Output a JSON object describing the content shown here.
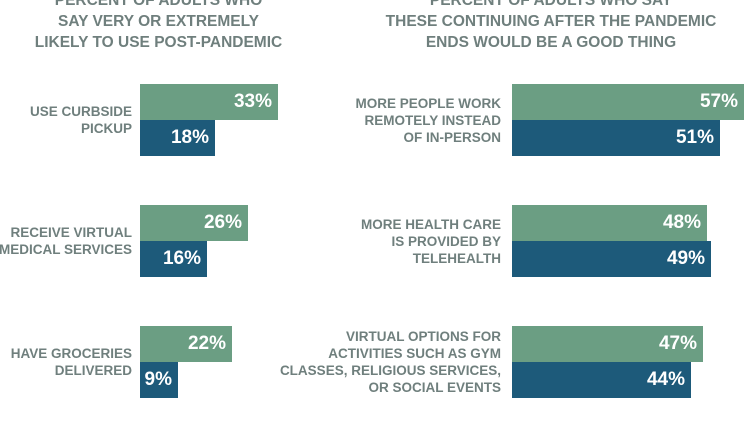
{
  "colors": {
    "series_1": "#6b9e83",
    "series_2": "#1d5a7a",
    "label_text": "#6f7f7d",
    "value_text": "#ffffff"
  },
  "chart_data": [
    {
      "type": "bar",
      "orientation": "horizontal",
      "title_lines": [
        "PERCENT OF ADULTS WHO",
        "SAY VERY OR EXTREMELY",
        "LIKELY TO USE POST-PANDEMIC"
      ],
      "categories": [
        {
          "lines": [
            "USE CURBSIDE",
            "PICKUP"
          ]
        },
        {
          "lines": [
            "RECEIVE VIRTUAL",
            "MEDICAL SERVICES"
          ]
        },
        {
          "lines": [
            "HAVE GROCERIES",
            "DELIVERED"
          ]
        }
      ],
      "series": [
        {
          "values": [
            33,
            26,
            22
          ],
          "labels": [
            "33%",
            "26%",
            "22%"
          ]
        },
        {
          "values": [
            18,
            16,
            9
          ],
          "labels": [
            "18%",
            "16%",
            "9%"
          ]
        }
      ],
      "xlim": [
        0,
        100
      ],
      "grid": false,
      "legend": "none"
    },
    {
      "type": "bar",
      "orientation": "horizontal",
      "title_lines": [
        "PERCENT OF ADULTS WHO SAY",
        "THESE CONTINUING AFTER THE PANDEMIC",
        "ENDS WOULD BE A GOOD THING"
      ],
      "categories": [
        {
          "lines": [
            "MORE PEOPLE WORK",
            "REMOTELY INSTEAD",
            "OF IN-PERSON"
          ]
        },
        {
          "lines": [
            "MORE HEALTH CARE",
            "IS PROVIDED BY",
            "TELEHEALTH"
          ]
        },
        {
          "lines": [
            "VIRTUAL OPTIONS FOR",
            "ACTIVITIES SUCH AS GYM",
            "CLASSES, RELIGIOUS SERVICES,",
            "OR SOCIAL EVENTS"
          ]
        }
      ],
      "series": [
        {
          "values": [
            57,
            48,
            47
          ],
          "labels": [
            "57%",
            "48%",
            "47%"
          ]
        },
        {
          "values": [
            51,
            49,
            44
          ],
          "labels": [
            "51%",
            "49%",
            "44%"
          ]
        }
      ],
      "xlim": [
        0,
        100
      ],
      "grid": false,
      "legend": "none"
    }
  ]
}
